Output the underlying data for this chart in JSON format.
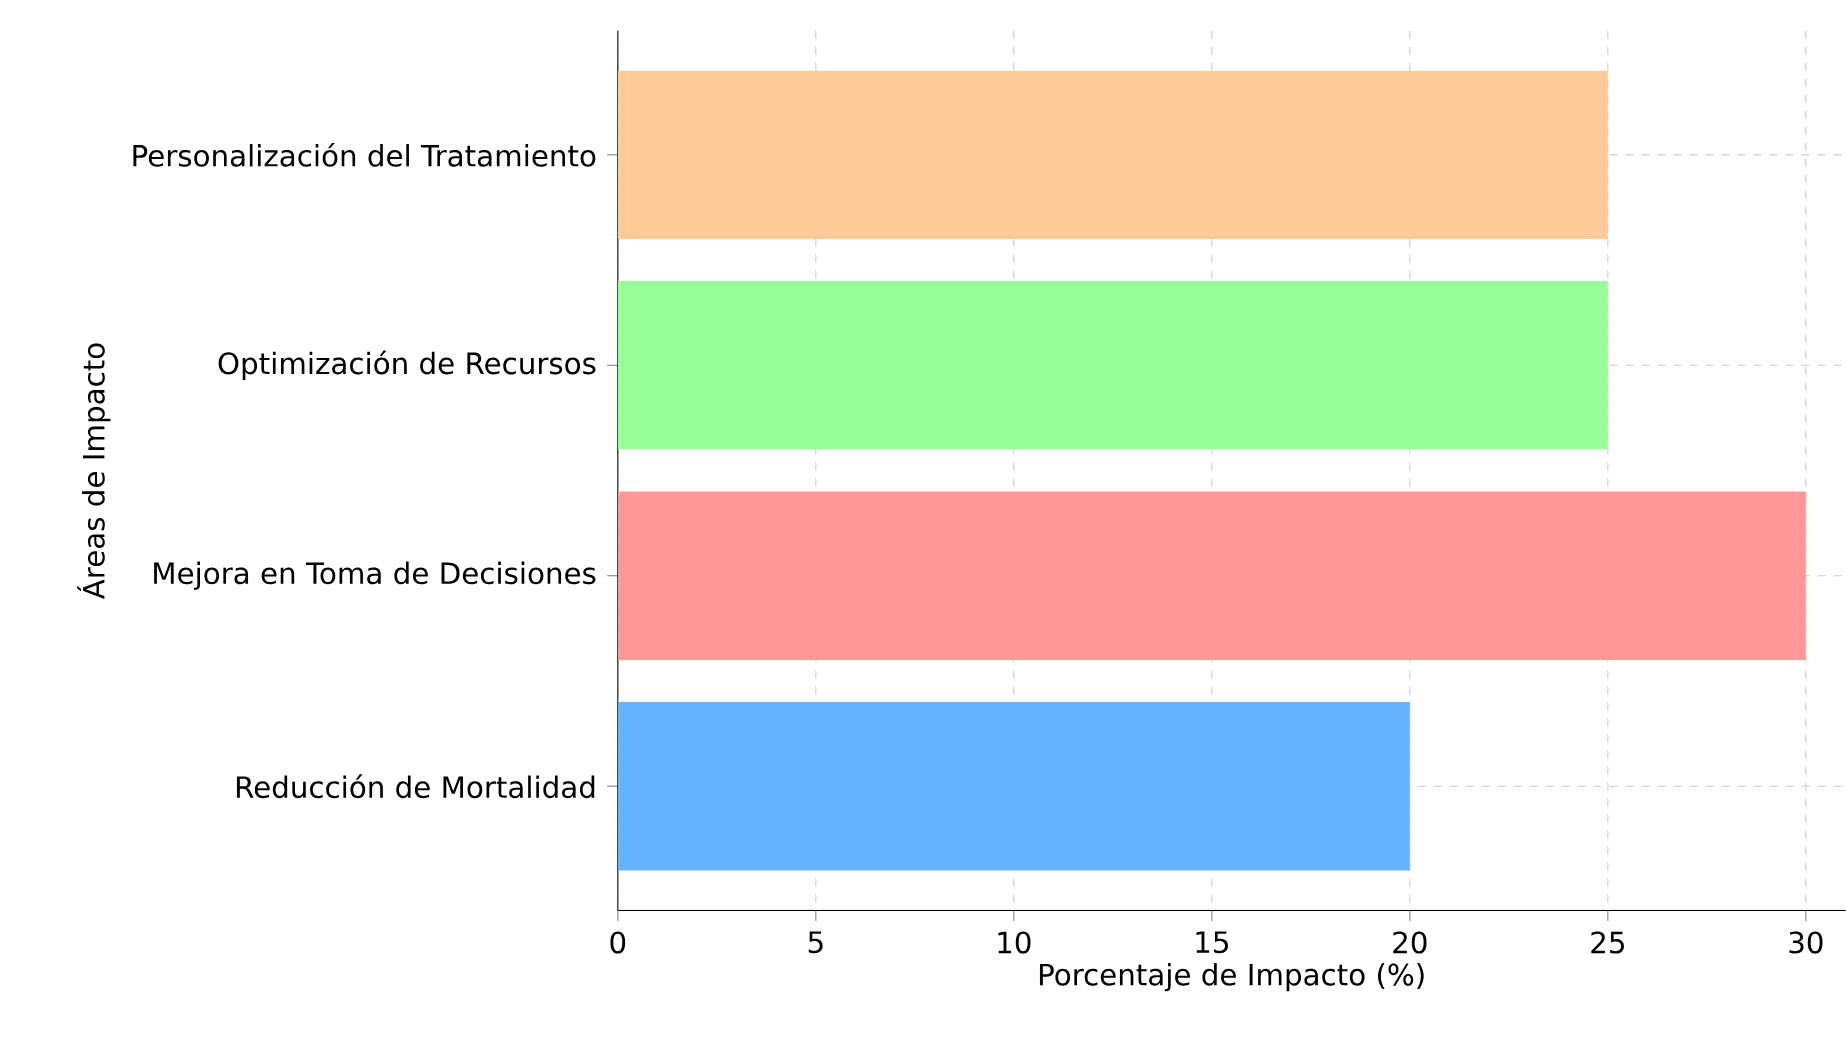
{
  "chart_data": {
    "type": "bar",
    "orientation": "horizontal",
    "categories": [
      "Personalización del Tratamiento",
      "Optimización de Recursos",
      "Mejora en Toma de Decisiones",
      "Reducción de Mortalidad"
    ],
    "values": [
      25,
      25,
      30,
      20
    ],
    "colors": [
      "#ffcc99",
      "#99ff99",
      "#ff9999",
      "#66b3ff"
    ],
    "xlim": [
      0,
      31
    ],
    "xticks": [
      0,
      5,
      10,
      15,
      20,
      25,
      30
    ],
    "xlabel": "Porcentaje de Impacto (%)",
    "ylabel": "Áreas de Impacto",
    "grid": true
  }
}
